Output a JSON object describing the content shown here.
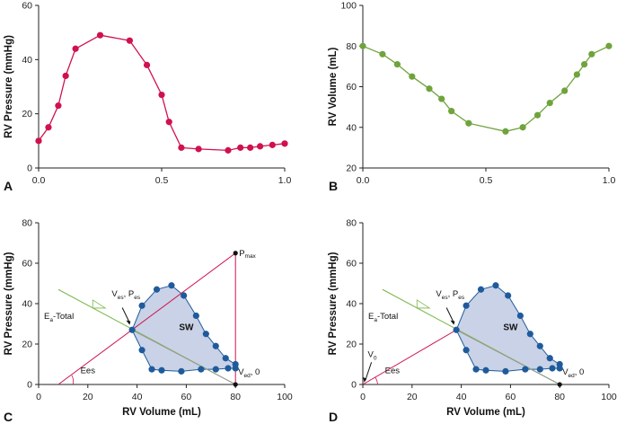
{
  "colors": {
    "pressure": "#d0114e",
    "volume": "#6fa33c",
    "loop_point": "#1f5b9c",
    "loop_fill": "#c9d2e6",
    "ees_line": "#d0114e",
    "ea_line": "#7ab648",
    "gray_line": "#999999",
    "axis": "#222222"
  },
  "chart_data": [
    {
      "type": "line",
      "panel": "A",
      "xlabel": "",
      "ylabel": "RV Pressure (mmHg)",
      "xlim": [
        0,
        1.0
      ],
      "ylim": [
        0,
        60
      ],
      "xticks": [
        "0.0",
        "0.5",
        "1.0"
      ],
      "yticks": [
        "0",
        "20",
        "40",
        "60"
      ],
      "series": [
        {
          "name": "RV Pressure",
          "x": [
            0.0,
            0.04,
            0.08,
            0.11,
            0.15,
            0.25,
            0.37,
            0.44,
            0.5,
            0.53,
            0.58,
            0.65,
            0.77,
            0.82,
            0.86,
            0.9,
            0.95,
            1.0
          ],
          "y": [
            10,
            15,
            23,
            34,
            44,
            49,
            47,
            38,
            27,
            17,
            7.5,
            7,
            6.5,
            7.5,
            7.5,
            8,
            8.5,
            9
          ]
        }
      ]
    },
    {
      "type": "line",
      "panel": "B",
      "xlabel": "",
      "ylabel": "RV Volume (mL)",
      "xlim": [
        0,
        1.0
      ],
      "ylim": [
        20,
        100
      ],
      "xticks": [
        "0.0",
        "0.5",
        "1.0"
      ],
      "yticks": [
        "20",
        "40",
        "60",
        "80",
        "100"
      ],
      "series": [
        {
          "name": "RV Volume",
          "x": [
            0.0,
            0.08,
            0.14,
            0.2,
            0.27,
            0.32,
            0.36,
            0.43,
            0.58,
            0.65,
            0.71,
            0.76,
            0.82,
            0.87,
            0.9,
            0.93,
            1.0
          ],
          "y": [
            80,
            76,
            71,
            65,
            59,
            54,
            48,
            42,
            38,
            40,
            46,
            52,
            58,
            66,
            71,
            76,
            80
          ]
        }
      ]
    },
    {
      "type": "scatter",
      "panel": "C",
      "xlabel": "RV Volume (mL)",
      "ylabel": "RV Pressure (mmHg)",
      "xlim": [
        0,
        100
      ],
      "ylim": [
        0,
        80
      ],
      "xticks": [
        "0",
        "20",
        "40",
        "60",
        "80",
        "100"
      ],
      "yticks": [
        "0",
        "20",
        "40",
        "60",
        "80"
      ],
      "loop_label": "SW",
      "loop": {
        "x": [
          38,
          42,
          48,
          54,
          59,
          64,
          68,
          72,
          76,
          80,
          80,
          77,
          72,
          66,
          58,
          50,
          46,
          42,
          38
        ],
        "y": [
          27,
          39,
          47,
          49,
          44,
          34,
          25,
          19,
          13,
          10,
          8,
          8,
          7.5,
          7.5,
          6.5,
          7,
          7.5,
          17,
          27
        ]
      },
      "lines": [
        {
          "name": "Ees",
          "from": [
            8,
            0
          ],
          "to": [
            80,
            65
          ]
        },
        {
          "name": "Ea-Total",
          "from": [
            8,
            47
          ],
          "to": [
            80,
            0
          ]
        },
        {
          "name": "Ea-Total-gray",
          "from": [
            38,
            27
          ],
          "to": [
            80,
            0
          ]
        },
        {
          "name": "vertical",
          "from": [
            80,
            65
          ],
          "to": [
            80,
            0
          ]
        }
      ],
      "points": [
        {
          "name": "Pmax",
          "x": 80,
          "y": 65
        },
        {
          "name": "Ved",
          "x": 80,
          "y": 0
        }
      ],
      "annotations": {
        "ees": "Ees",
        "ea_main": "E",
        "ea_sub": "a",
        "ea_suffix": "-Total",
        "ves_main": "V",
        "ves_sub": "es",
        "ves_mid": ", P",
        "pes_sub": "es",
        "ved_main": "V",
        "ved_sub": "ed",
        "ved_suffix": ", 0",
        "pmax_main": "P",
        "pmax_sub": "max"
      }
    },
    {
      "type": "scatter",
      "panel": "D",
      "xlabel": "RV Volume (mL)",
      "ylabel": "RV Pressure (mmHg)",
      "xlim": [
        0,
        100
      ],
      "ylim": [
        0,
        80
      ],
      "xticks": [
        "0",
        "20",
        "40",
        "60",
        "80",
        "100"
      ],
      "yticks": [
        "0",
        "20",
        "40",
        "60",
        "80"
      ],
      "loop_label": "SW",
      "loop": {
        "x": [
          38,
          42,
          48,
          54,
          59,
          64,
          68,
          72,
          76,
          80,
          80,
          77,
          72,
          66,
          58,
          50,
          46,
          42,
          38
        ],
        "y": [
          27,
          39,
          47,
          49,
          44,
          34,
          25,
          19,
          13,
          10,
          8,
          8,
          7.5,
          7.5,
          6.5,
          7,
          7.5,
          17,
          27
        ]
      },
      "lines": [
        {
          "name": "Ees",
          "from": [
            0,
            0
          ],
          "to": [
            38,
            27
          ]
        },
        {
          "name": "Ea-Total",
          "from": [
            8,
            47
          ],
          "to": [
            80,
            0
          ]
        },
        {
          "name": "Ea-Total-gray",
          "from": [
            38,
            27
          ],
          "to": [
            80,
            0
          ]
        }
      ],
      "points": [
        {
          "name": "Ved",
          "x": 80,
          "y": 0
        }
      ],
      "annotations": {
        "ees": "Ees",
        "ea_main": "E",
        "ea_sub": "a",
        "ea_suffix": "-Total",
        "ves_main": "V",
        "ves_sub": "es",
        "ves_mid": ", P",
        "pes_sub": "es",
        "ved_main": "V",
        "ved_sub": "ed",
        "ved_suffix": ", 0",
        "v0_main": "V",
        "v0_sub": "0"
      }
    }
  ]
}
